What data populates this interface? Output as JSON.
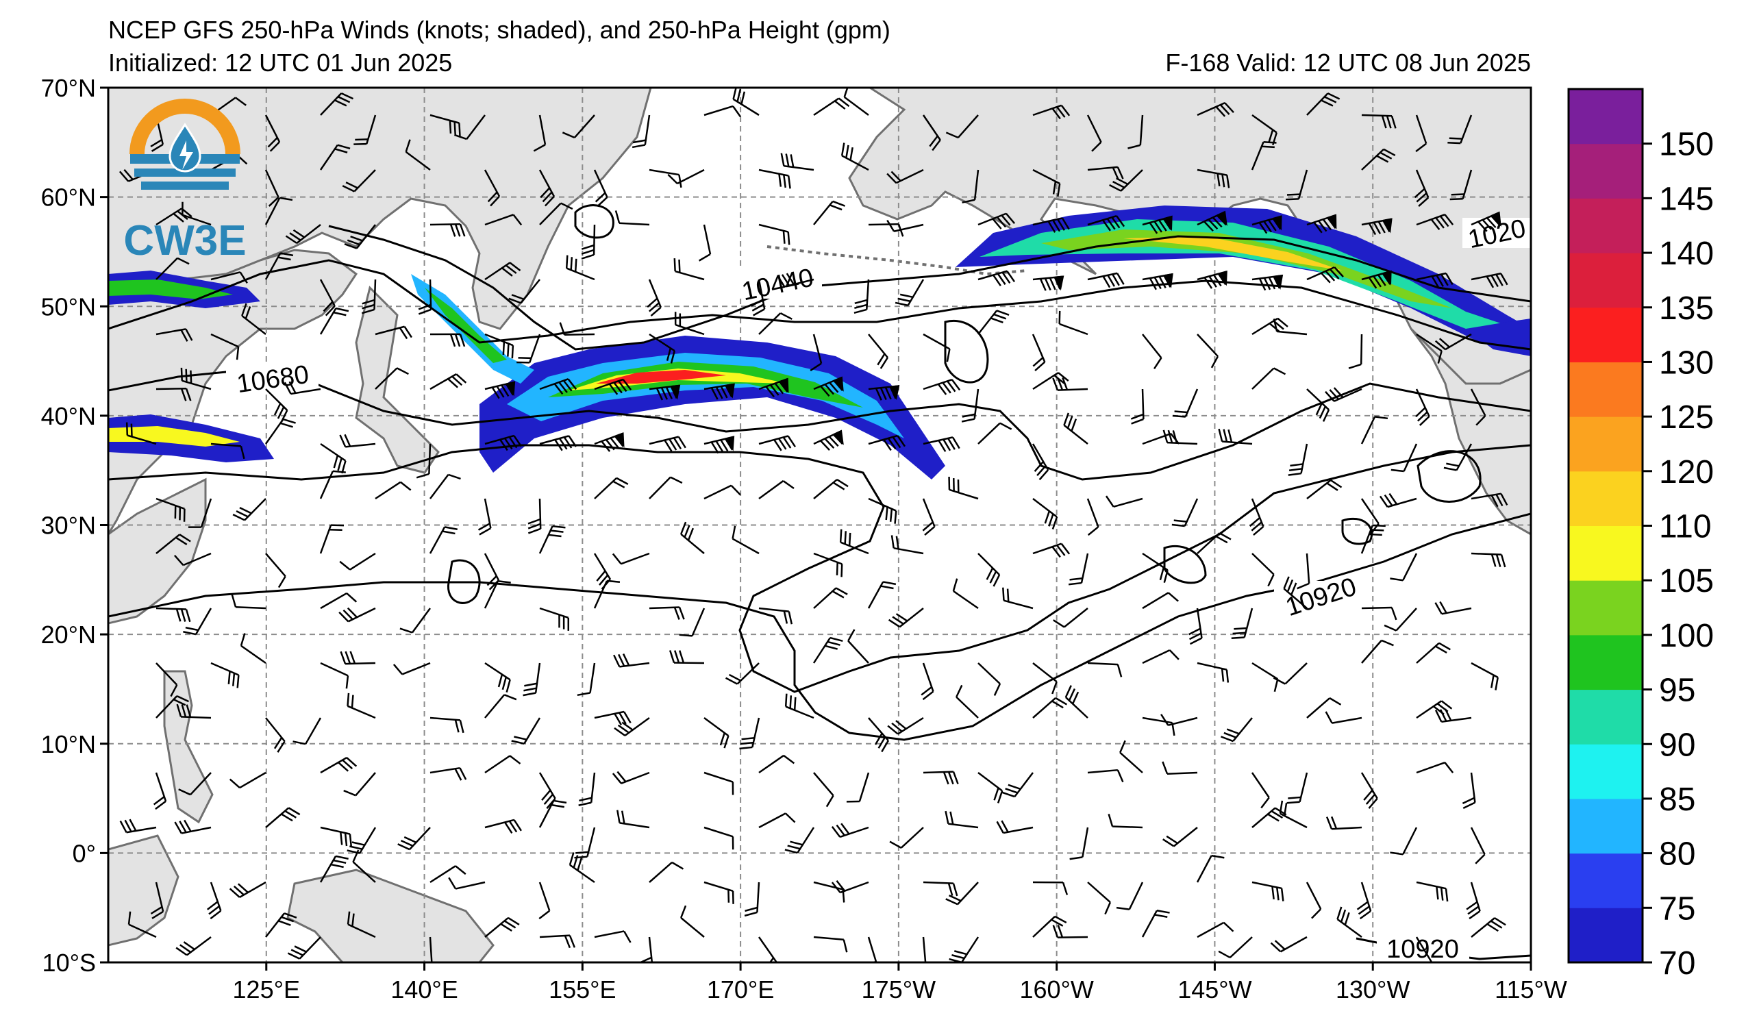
{
  "header": {
    "title": "NCEP GFS 250-hPa Winds (knots; shaded), and 250-hPa Height (gpm)",
    "initialized": "Initialized: 12 UTC 01 Jun 2025",
    "valid": "F-168  Valid: 12 UTC 08 Jun 2025"
  },
  "logo": {
    "text": "CW3E",
    "colors": {
      "orange": "#f29a1e",
      "blue": "#2a86b8"
    }
  },
  "axes": {
    "lat_labels": [
      "70°N",
      "60°N",
      "50°N",
      "40°N",
      "30°N",
      "20°N",
      "10°N",
      "0°",
      "10°S"
    ],
    "lon_labels": [
      "125°E",
      "140°E",
      "155°E",
      "170°E",
      "175°W",
      "160°W",
      "145°W",
      "130°W",
      "115°W"
    ]
  },
  "contour_labels": [
    "10440",
    "10680",
    "10920",
    "10920",
    "1020"
  ],
  "colorbar": {
    "ticks": [
      "70",
      "75",
      "80",
      "85",
      "90",
      "95",
      "100",
      "105",
      "110",
      "120",
      "125",
      "130",
      "135",
      "140",
      "145",
      "150"
    ],
    "colors": [
      "#1f1fc8",
      "#2a3ff0",
      "#22b5ff",
      "#1ef2f0",
      "#1fdca8",
      "#1fc41f",
      "#7ad31f",
      "#f8f81f",
      "#fbd21f",
      "#fba31f",
      "#fb7a1f",
      "#fb1f1f",
      "#dc1f3c",
      "#c41f5a",
      "#a51f7a",
      "#7a1f9c"
    ]
  },
  "map_colors": {
    "land": "#e3e3e3",
    "coast": "#707070",
    "grid": "#8c8c8c"
  }
}
